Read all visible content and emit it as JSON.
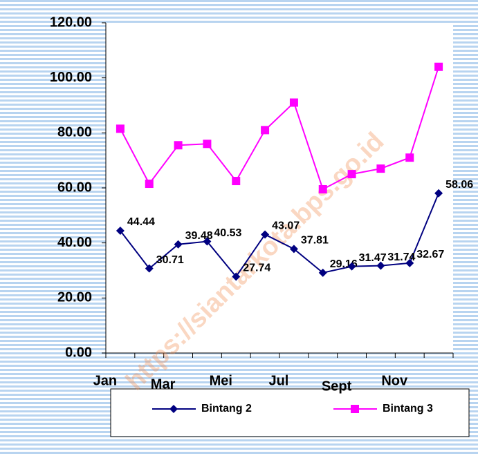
{
  "chart_data": {
    "type": "line",
    "watermark": "https://siantarkota.bps.go.id",
    "categories": [
      "Jan",
      null,
      "Mar",
      null,
      "Mei",
      null,
      "Jul",
      null,
      "Sept",
      null,
      "Nov",
      null
    ],
    "series": [
      {
        "name": "Bintang 2",
        "color": "#000080",
        "marker": "diamond",
        "values": [
          44.44,
          30.71,
          39.48,
          40.53,
          27.74,
          43.07,
          37.81,
          29.16,
          31.47,
          31.74,
          32.67,
          58.06
        ],
        "data_labels": true
      },
      {
        "name": "Bintang 3",
        "color": "#ff00ff",
        "marker": "square",
        "values": [
          81.5,
          61.5,
          75.5,
          76,
          62.5,
          81,
          91,
          59.5,
          65,
          67,
          71,
          104
        ],
        "data_labels": false
      }
    ],
    "ylim": [
      0,
      120
    ],
    "yticks": [
      {
        "value": 0,
        "label": "0.00"
      },
      {
        "value": 20,
        "label": "20.00"
      },
      {
        "value": 40,
        "label": "40.00"
      },
      {
        "value": 60,
        "label": "60.00"
      },
      {
        "value": 80,
        "label": "80.00"
      },
      {
        "value": 100,
        "label": "100.00"
      },
      {
        "value": 120,
        "label": "120.00"
      }
    ],
    "grid": false,
    "legend": "bottom"
  }
}
